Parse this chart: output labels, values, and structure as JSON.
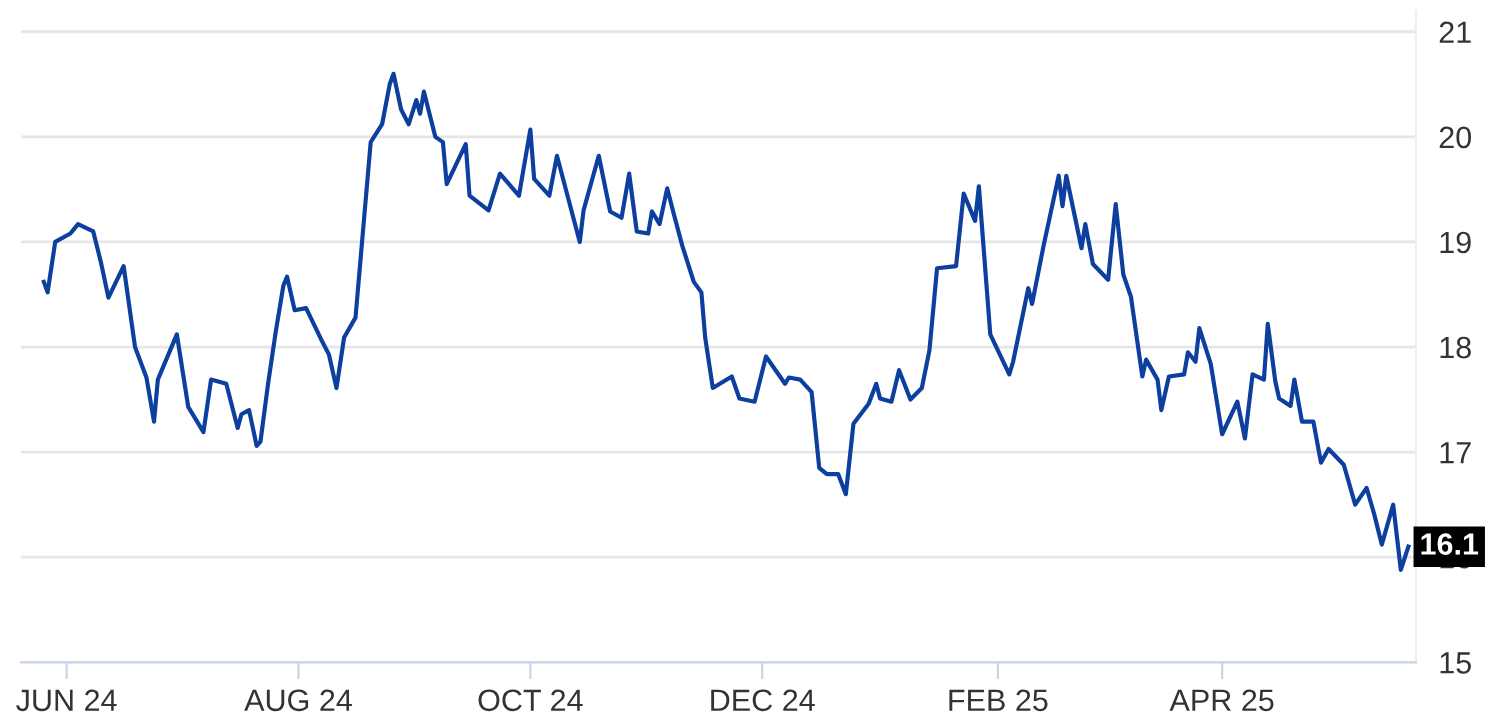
{
  "chart_data": {
    "type": "line",
    "color": "#0d3f9f",
    "grid": "y",
    "legend": false,
    "marker": "none",
    "line_style": "solid",
    "x": [
      "2024-05-26",
      "2024-05-27",
      "2024-05-29",
      "2024-06-02",
      "2024-06-04",
      "2024-06-08",
      "2024-06-10",
      "2024-06-12",
      "2024-06-16",
      "2024-06-19",
      "2024-06-22",
      "2024-06-24",
      "2024-06-25",
      "2024-06-30",
      "2024-07-03",
      "2024-07-07",
      "2024-07-09",
      "2024-07-13",
      "2024-07-16",
      "2024-07-17",
      "2024-07-19",
      "2024-07-21",
      "2024-07-22",
      "2024-07-24",
      "2024-07-26",
      "2024-07-28",
      "2024-07-29",
      "2024-07-31",
      "2024-08-03",
      "2024-08-07",
      "2024-08-09",
      "2024-08-11",
      "2024-08-13",
      "2024-08-16",
      "2024-08-20",
      "2024-08-23",
      "2024-08-25",
      "2024-08-26",
      "2024-08-28",
      "2024-08-30",
      "2024-09-01",
      "2024-09-02",
      "2024-09-03",
      "2024-09-06",
      "2024-09-08",
      "2024-09-09",
      "2024-09-14",
      "2024-09-15",
      "2024-09-20",
      "2024-09-23",
      "2024-09-28",
      "2024-10-01",
      "2024-10-02",
      "2024-10-06",
      "2024-10-08",
      "2024-10-14",
      "2024-10-15",
      "2024-10-19",
      "2024-10-22",
      "2024-10-25",
      "2024-10-27",
      "2024-10-29",
      "2024-11-01",
      "2024-11-02",
      "2024-11-04",
      "2024-11-06",
      "2024-11-08",
      "2024-11-10",
      "2024-11-13",
      "2024-11-15",
      "2024-11-16",
      "2024-11-18",
      "2024-11-23",
      "2024-11-25",
      "2024-11-29",
      "2024-12-02",
      "2024-12-07",
      "2024-12-08",
      "2024-12-11",
      "2024-12-14",
      "2024-12-16",
      "2024-12-18",
      "2024-12-21",
      "2024-12-23",
      "2024-12-25",
      "2024-12-29",
      "2024-12-31",
      "2025-01-01",
      "2025-01-04",
      "2025-01-06",
      "2025-01-09",
      "2025-01-12",
      "2025-01-14",
      "2025-01-16",
      "2025-01-21",
      "2025-01-23",
      "2025-01-26",
      "2025-01-27",
      "2025-01-30",
      "2025-02-04",
      "2025-02-05",
      "2025-02-09",
      "2025-02-10",
      "2025-02-13",
      "2025-02-17",
      "2025-02-18",
      "2025-02-19",
      "2025-02-23",
      "2025-02-24",
      "2025-02-26",
      "2025-03-02",
      "2025-03-04",
      "2025-03-06",
      "2025-03-08",
      "2025-03-11",
      "2025-03-12",
      "2025-03-15",
      "2025-03-16",
      "2025-03-18",
      "2025-03-22",
      "2025-03-23",
      "2025-03-25",
      "2025-03-26",
      "2025-03-29",
      "2025-04-01",
      "2025-04-05",
      "2025-04-07",
      "2025-04-09",
      "2025-04-12",
      "2025-04-13",
      "2025-04-15",
      "2025-04-16",
      "2025-04-19",
      "2025-04-20",
      "2025-04-22",
      "2025-04-25",
      "2025-04-27",
      "2025-04-29",
      "2025-05-03",
      "2025-05-06",
      "2025-05-09",
      "2025-05-11",
      "2025-05-13",
      "2025-05-16",
      "2025-05-18",
      "2025-05-20"
    ],
    "values": [
      18.62,
      18.52,
      19.0,
      19.08,
      19.17,
      19.1,
      18.81,
      18.47,
      18.77,
      18.0,
      17.71,
      17.29,
      17.69,
      18.12,
      17.43,
      17.19,
      17.69,
      17.65,
      17.23,
      17.36,
      17.4,
      17.06,
      17.1,
      17.65,
      18.14,
      18.58,
      18.67,
      18.35,
      18.37,
      18.07,
      17.93,
      17.61,
      18.09,
      18.28,
      19.95,
      20.12,
      20.5,
      20.6,
      20.26,
      20.12,
      20.35,
      20.22,
      20.43,
      20.0,
      19.95,
      19.55,
      19.93,
      19.44,
      19.3,
      19.65,
      19.44,
      20.07,
      19.6,
      19.44,
      19.82,
      19.0,
      19.3,
      19.82,
      19.29,
      19.23,
      19.65,
      19.1,
      19.08,
      19.29,
      19.17,
      19.51,
      19.23,
      18.96,
      18.62,
      18.52,
      18.09,
      17.61,
      17.72,
      17.51,
      17.48,
      17.91,
      17.65,
      17.71,
      17.69,
      17.57,
      16.85,
      16.79,
      16.79,
      16.6,
      17.27,
      17.46,
      17.65,
      17.51,
      17.48,
      17.78,
      17.5,
      17.61,
      17.97,
      18.75,
      18.77,
      19.46,
      19.2,
      19.53,
      18.12,
      17.74,
      17.86,
      18.56,
      18.41,
      18.96,
      19.63,
      19.34,
      19.63,
      18.94,
      19.17,
      18.79,
      18.64,
      19.36,
      18.69,
      18.48,
      17.72,
      17.88,
      17.69,
      17.4,
      17.72,
      17.74,
      17.95,
      17.86,
      18.18,
      17.84,
      17.17,
      17.48,
      17.13,
      17.74,
      17.69,
      18.22,
      17.67,
      17.51,
      17.44,
      17.69,
      17.29,
      17.29,
      16.9,
      17.03,
      16.88,
      16.5,
      16.66,
      16.41,
      16.12,
      16.5,
      15.88,
      16.1
    ],
    "xlim": [
      "2024-05-20",
      "2025-05-22"
    ],
    "xticks": [
      {
        "value": "2024-06-01",
        "label": "JUN 24"
      },
      {
        "value": "2024-08-01",
        "label": "AUG 24"
      },
      {
        "value": "2024-10-01",
        "label": "OCT 24"
      },
      {
        "value": "2024-12-01",
        "label": "DEC 24"
      },
      {
        "value": "2025-02-01",
        "label": "FEB 25"
      },
      {
        "value": "2025-04-01",
        "label": "APR 25"
      }
    ],
    "ylim": [
      15,
      21.2
    ],
    "yticks": [
      15,
      16,
      17,
      18,
      19,
      20,
      21
    ],
    "annotations": [
      {
        "text": "16.1",
        "x": "2025-05-20",
        "y": 16.1
      }
    ]
  }
}
